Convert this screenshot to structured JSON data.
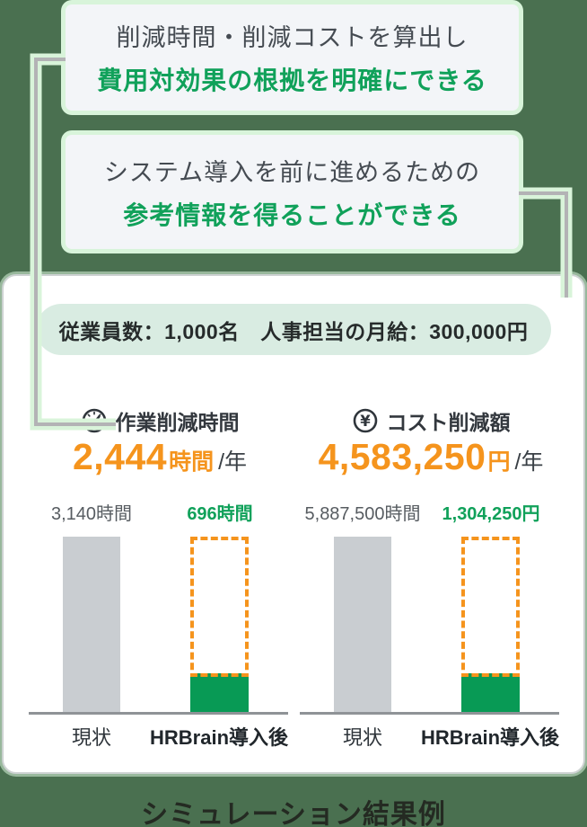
{
  "colors": {
    "background": "#4a7050",
    "connector_halo": "#d9f4da",
    "connector_gray": "#b3b3b5",
    "accent_green_text": "#10a15a",
    "bar_green": "#089a55",
    "accent_orange": "#f5941d",
    "bar_gray": "#c9cdd1",
    "pill_bg": "#d9ece2",
    "callout_bg": "#f3f5f8",
    "card_bg": "#ffffff"
  },
  "callouts": [
    {
      "line1": "削減時間・削減コストを算出し",
      "line2": "費用対効果の根拠を明確にできる"
    },
    {
      "line1": "システム導入を前に進めるための",
      "line2": "参考情報を得ることができる"
    }
  ],
  "card": {
    "assumptions": "従業員数：1,000名　人事担当の月給：300,000円"
  },
  "caption": "シミュレーション結果例",
  "chart_data": [
    {
      "type": "bar",
      "title": "作業削減時間",
      "icon": "clock-icon",
      "savings": {
        "amount": "2,444",
        "unit": "時間",
        "suffix": "/年"
      },
      "savings_value": 2444,
      "categories": [
        "現状",
        "HRBrain導入後"
      ],
      "values": [
        3140,
        696
      ],
      "value_labels": [
        "3,140時間",
        "696時間"
      ],
      "bar_styles": [
        "solid-gray",
        "green-with-dashed-orange-ghost"
      ],
      "ylim": [
        0,
        3140
      ],
      "grid": false,
      "legend": "none"
    },
    {
      "type": "bar",
      "title": "コスト削減額",
      "icon": "yen-icon",
      "savings": {
        "amount": "4,583,250",
        "unit": "円",
        "suffix": "/年"
      },
      "savings_value": 4583250,
      "categories": [
        "現状",
        "HRBrain導入後"
      ],
      "values": [
        5887500,
        1304250
      ],
      "value_labels": [
        "5,887,500時間",
        "1,304,250円"
      ],
      "bar_styles": [
        "solid-gray",
        "green-with-dashed-orange-ghost"
      ],
      "ylim": [
        0,
        5887500
      ],
      "grid": false,
      "legend": "none"
    }
  ]
}
